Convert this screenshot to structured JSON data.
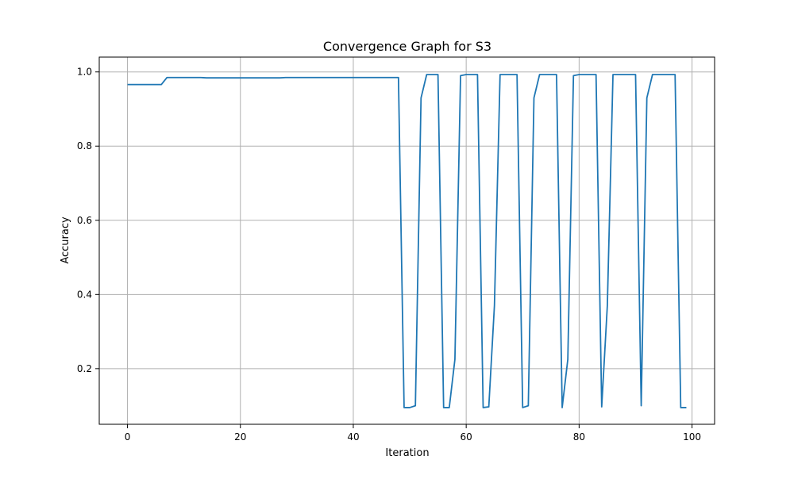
{
  "chart_data": {
    "type": "line",
    "title": "Convergence Graph for S3",
    "xlabel": "Iteration",
    "ylabel": "Accuracy",
    "xlim": [
      -5,
      104
    ],
    "ylim": [
      0.05,
      1.04
    ],
    "xticks": [
      0,
      20,
      40,
      60,
      80,
      100
    ],
    "yticks": [
      0.2,
      0.4,
      0.6,
      0.8,
      1.0
    ],
    "xtick_labels": [
      "0",
      "20",
      "40",
      "60",
      "80",
      "100"
    ],
    "ytick_labels": [
      "0.2",
      "0.4",
      "0.6",
      "0.8",
      "1.0"
    ],
    "grid": true,
    "colors": {
      "line": "#1f77b4",
      "grid": "#b0b0b0"
    },
    "series": [
      {
        "x": [
          0,
          1,
          2,
          3,
          4,
          5,
          6,
          7,
          8,
          9,
          10,
          11,
          12,
          13,
          14,
          15,
          16,
          17,
          18,
          19,
          20,
          21,
          22,
          23,
          24,
          25,
          26,
          27,
          28,
          29,
          30,
          31,
          32,
          33,
          34,
          35,
          36,
          37,
          38,
          39,
          40,
          41,
          42,
          43,
          44,
          45,
          46,
          47,
          48,
          49,
          50,
          51,
          52,
          53,
          54,
          55,
          56,
          57,
          58,
          59,
          60,
          61,
          62,
          63,
          64,
          65,
          66,
          67,
          68,
          69,
          70,
          71,
          72,
          73,
          74,
          75,
          76,
          77,
          78,
          79,
          80,
          81,
          82,
          83,
          84,
          85,
          86,
          87,
          88,
          89,
          90,
          91,
          92,
          93,
          94,
          95,
          96,
          97,
          98,
          99
        ],
        "values": [
          0.966,
          0.966,
          0.966,
          0.966,
          0.966,
          0.966,
          0.966,
          0.985,
          0.985,
          0.985,
          0.985,
          0.985,
          0.985,
          0.985,
          0.984,
          0.984,
          0.984,
          0.984,
          0.984,
          0.984,
          0.984,
          0.984,
          0.984,
          0.984,
          0.984,
          0.984,
          0.984,
          0.984,
          0.985,
          0.985,
          0.985,
          0.985,
          0.985,
          0.985,
          0.985,
          0.985,
          0.985,
          0.985,
          0.985,
          0.985,
          0.985,
          0.985,
          0.985,
          0.985,
          0.985,
          0.985,
          0.985,
          0.985,
          0.985,
          0.095,
          0.095,
          0.1,
          0.93,
          0.993,
          0.993,
          0.993,
          0.095,
          0.095,
          0.225,
          0.99,
          0.993,
          0.993,
          0.993,
          0.095,
          0.097,
          0.37,
          0.993,
          0.993,
          0.993,
          0.993,
          0.095,
          0.1,
          0.93,
          0.993,
          0.993,
          0.993,
          0.993,
          0.095,
          0.225,
          0.99,
          0.993,
          0.993,
          0.993,
          0.993,
          0.097,
          0.37,
          0.993,
          0.993,
          0.993,
          0.993,
          0.993,
          0.1,
          0.93,
          0.993,
          0.993,
          0.993,
          0.993,
          0.993,
          0.095,
          0.095
        ]
      }
    ]
  }
}
